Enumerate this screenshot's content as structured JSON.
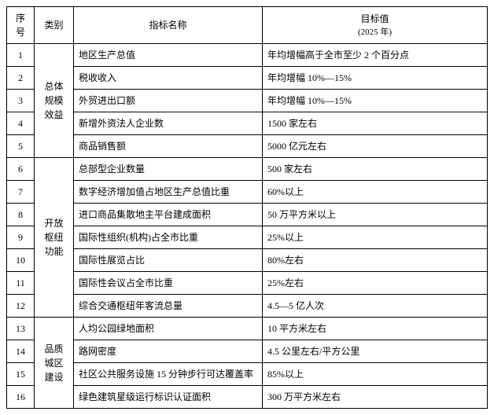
{
  "headers": {
    "num": "序号",
    "category": "类别",
    "indicator": "指标名称",
    "target_main": "目标值",
    "target_sub": "(2025 年)"
  },
  "categories": [
    {
      "label": "总体规模效益",
      "span": 5
    },
    {
      "label": "开放枢纽功能",
      "span": 7
    },
    {
      "label": "品质城区建设",
      "span": 4
    }
  ],
  "rows": [
    {
      "num": "1",
      "name": "地区生产总值",
      "target": "年均增幅高于全市至少 2 个百分点"
    },
    {
      "num": "2",
      "name": "税收收入",
      "target": "年均增幅 10%—15%"
    },
    {
      "num": "3",
      "name": "外贸进出口额",
      "target": "年均增幅 10%—15%"
    },
    {
      "num": "4",
      "name": "新增外资法人企业数",
      "target": "1500 家左右"
    },
    {
      "num": "5",
      "name": "商品销售额",
      "target": "5000 亿元左右"
    },
    {
      "num": "6",
      "name": "总部型企业数量",
      "target": "500 家左右"
    },
    {
      "num": "7",
      "name": "数字经济增加值占地区生产总值比重",
      "target": "60%以上"
    },
    {
      "num": "8",
      "name": "进口商品集散地主平台建成面积",
      "target": "50 万平方米以上"
    },
    {
      "num": "9",
      "name": "国际性组织(机构)占全市比重",
      "target": "25%以上"
    },
    {
      "num": "10",
      "name": "国际性展览占比",
      "target": "80%左右"
    },
    {
      "num": "11",
      "name": "国际性会议占全市比重",
      "target": "25%左右"
    },
    {
      "num": "12",
      "name": "综合交通枢纽年客流总量",
      "target": "4.5—5 亿人次"
    },
    {
      "num": "13",
      "name": "人均公园绿地面积",
      "target": "10 平方米左右"
    },
    {
      "num": "14",
      "name": "路网密度",
      "target": "4.5 公里左右/平方公里"
    },
    {
      "num": "15",
      "name": "社区公共服务设施 15 分钟步行可达覆盖率",
      "target": "85%以上"
    },
    {
      "num": "16",
      "name": "绿色建筑星级运行标识认证面积",
      "target": "300 万平方米左右"
    }
  ]
}
